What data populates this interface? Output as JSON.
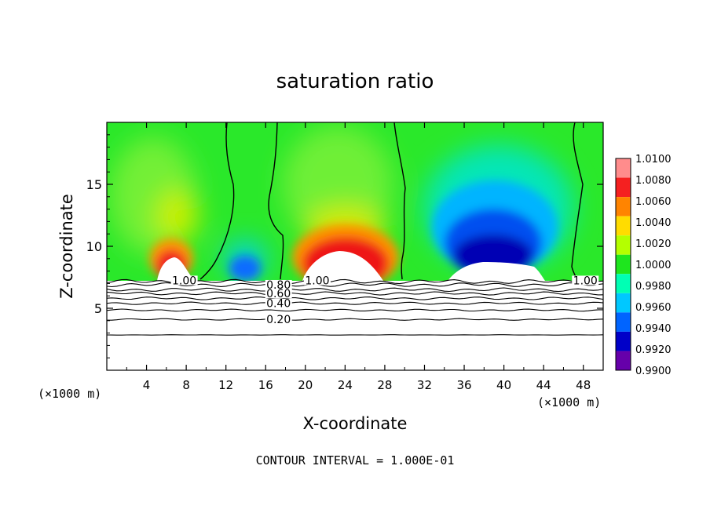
{
  "chart_data": {
    "type": "heatmap",
    "title": "saturation ratio",
    "xlabel": "X-coordinate",
    "ylabel": "Z-coordinate",
    "x_unit_left": "(×1000 m)",
    "x_unit_right": "(×1000 m)",
    "xlim": [
      0,
      50
    ],
    "ylim": [
      0,
      20
    ],
    "x_ticks": [
      4,
      8,
      12,
      16,
      20,
      24,
      28,
      32,
      36,
      40,
      44,
      48
    ],
    "y_ticks": [
      5,
      10,
      15
    ],
    "footer": "CONTOUR INTERVAL = 1.000E-01",
    "colorbar": {
      "levels": [
        "1.0100",
        "1.0080",
        "1.0060",
        "1.0040",
        "1.0020",
        "1.0000",
        "0.9980",
        "0.9960",
        "0.9940",
        "0.9920",
        "0.9900"
      ],
      "colors": [
        "#ff8c8c",
        "#f52020",
        "#ff8400",
        "#ffdc00",
        "#b4ff00",
        "#1ee61e",
        "#00ffb4",
        "#00c8ff",
        "#0064ff",
        "#0000c8",
        "#6600aa"
      ]
    },
    "contour_labels": [
      {
        "text": "1.00",
        "x": 7.8,
        "z": 7.25
      },
      {
        "text": "1.00",
        "x": 21.2,
        "z": 7.25
      },
      {
        "text": "1.00",
        "x": 48.2,
        "z": 7.25
      },
      {
        "text": "0.80",
        "x": 17.3,
        "z": 6.9
      },
      {
        "text": "0.60",
        "x": 17.3,
        "z": 6.2
      },
      {
        "text": "0.40",
        "x": 17.3,
        "z": 5.4
      },
      {
        "text": "0.20",
        "x": 17.3,
        "z": 4.1
      }
    ],
    "cloud_base_z": 7.4,
    "contour_levels_below": [
      0.2,
      0.4,
      0.6,
      0.8,
      1.0
    ]
  }
}
